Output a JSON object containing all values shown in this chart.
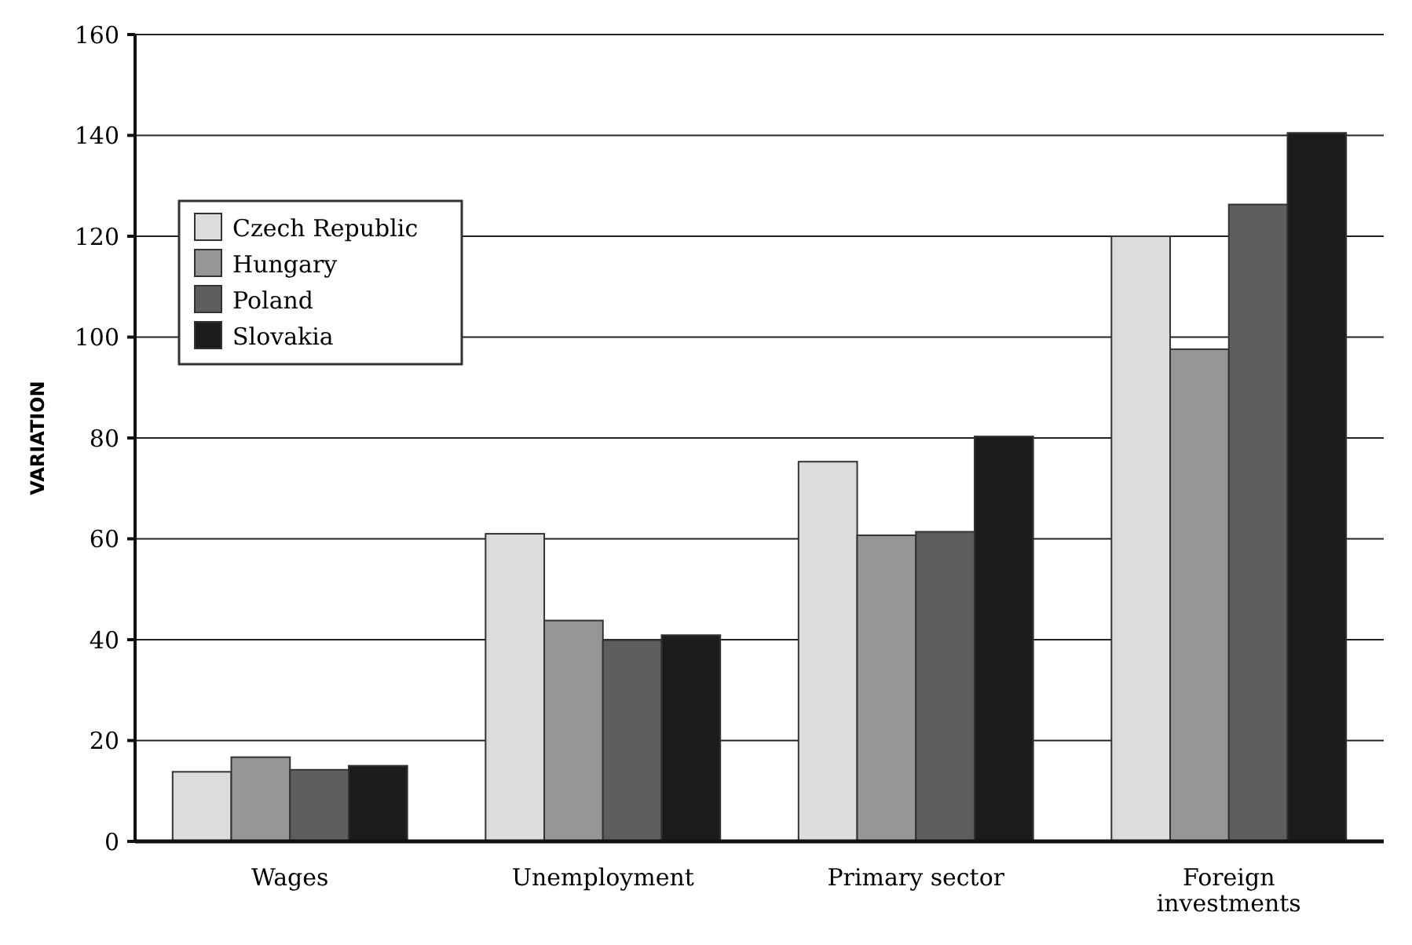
{
  "chart_data": {
    "type": "bar",
    "ylabel": "VARIATION",
    "categories": [
      "Wages",
      "Unemployment",
      "Primary sector",
      "Foreign investments"
    ],
    "series": [
      {
        "name": "Czech Republic",
        "color": "#dcdcdc",
        "values": [
          13.8,
          61,
          75.3,
          120
        ]
      },
      {
        "name": "Hungary",
        "color": "#969696",
        "values": [
          16.7,
          43.8,
          60.7,
          97.6
        ]
      },
      {
        "name": "Poland",
        "color": "#5e5e5e",
        "values": [
          14.2,
          39.9,
          61.4,
          126.3
        ]
      },
      {
        "name": "Slovakia",
        "color": "#1c1c1c",
        "values": [
          15,
          40.9,
          80.3,
          140.5
        ]
      }
    ],
    "ylim": [
      0,
      160
    ],
    "yticks": [
      0,
      20,
      40,
      60,
      80,
      100,
      120,
      140,
      160
    ],
    "grid": "y",
    "legend": "top left"
  }
}
